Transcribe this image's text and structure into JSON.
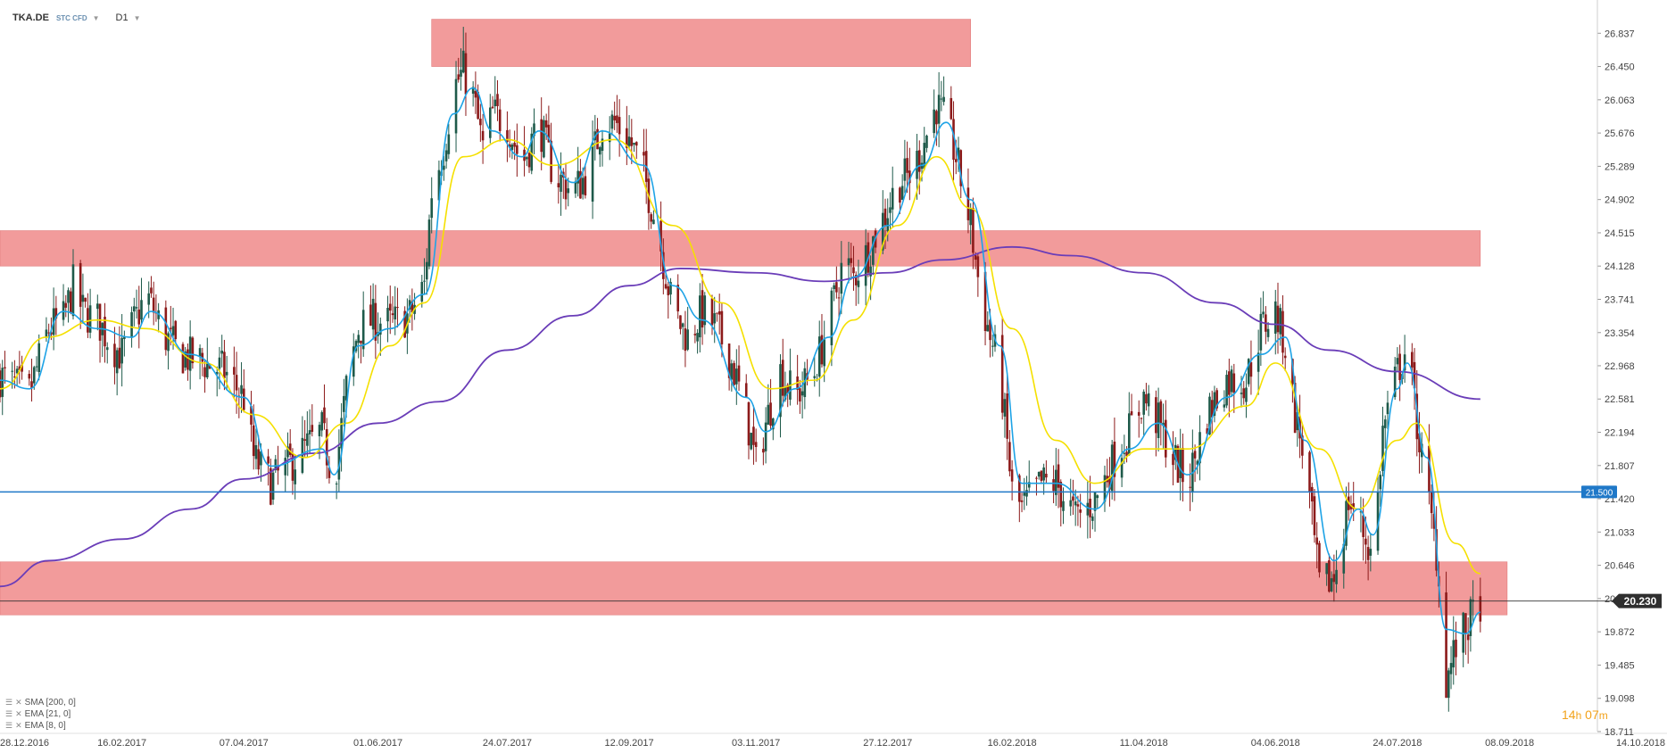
{
  "header": {
    "symbol": "TKA.DE",
    "subtitle": "STC CFD",
    "timeframe": "D1"
  },
  "legend": [
    {
      "label": "SMA [200, 0]",
      "color": "#6a3db8"
    },
    {
      "label": "EMA [21, 0]",
      "color": "#f5e000"
    },
    {
      "label": "EMA [8, 0]",
      "color": "#1ea3e6"
    }
  ],
  "timer": {
    "hours": "14",
    "h_unit": "h",
    "minutes": "07",
    "m_unit": "m"
  },
  "colors": {
    "zone": "#f29b9b",
    "bull": "#1e5a4a",
    "bear": "#8c1a1a",
    "sma200": "#6a3db8",
    "ema21": "#f5e000",
    "ema8": "#1ea3e6",
    "level": "#1f78c8",
    "price": "#333333"
  },
  "chart_data": {
    "type": "candlestick",
    "y_ticks": [
      "26.837",
      "26.450",
      "26.063",
      "25.676",
      "25.289",
      "24.902",
      "24.515",
      "24.128",
      "23.741",
      "23.354",
      "22.968",
      "22.581",
      "22.194",
      "21.807",
      "21.420",
      "21.033",
      "20.646",
      "20.259",
      "19.872",
      "19.485",
      "19.098",
      "18.711"
    ],
    "x_ticks": [
      "28.12.2016",
      "16.02.2017",
      "07.04.2017",
      "01.06.2017",
      "24.07.2017",
      "12.09.2017",
      "03.11.2017",
      "27.12.2017",
      "16.02.2018",
      "11.04.2018",
      "04.06.2018",
      "24.07.2018",
      "08.09.2018",
      "14.10.2018"
    ],
    "ylim": [
      18.711,
      27.224
    ],
    "xlim": [
      "2016-12-28",
      "2018-10-14"
    ],
    "horizontal_level": {
      "value": 21.5,
      "label": "21.500"
    },
    "current_price": {
      "value": 20.23,
      "label": "20.230"
    },
    "zones": [
      {
        "y_low": 26.45,
        "y_high": 27.0,
        "from": "2017-06-23",
        "to": "2018-01-30"
      },
      {
        "y_low": 24.128,
        "y_high": 24.54,
        "from": "2016-12-28",
        "to": "2018-08-27"
      },
      {
        "y_low": 20.069,
        "y_high": 20.686,
        "from": "2016-12-28",
        "to": "2018-09-07"
      }
    ],
    "close_path": [
      [
        "2016-12-28",
        22.85
      ],
      [
        "2017-01-02",
        22.75
      ],
      [
        "2017-01-09",
        22.65
      ],
      [
        "2017-01-17",
        23.4
      ],
      [
        "2017-01-23",
        23.5
      ],
      [
        "2017-01-27",
        23.9
      ],
      [
        "2017-01-31",
        23.6
      ],
      [
        "2017-02-06",
        23.5
      ],
      [
        "2017-02-12",
        23.2
      ],
      [
        "2017-02-16",
        23.1
      ],
      [
        "2017-02-20",
        23.4
      ],
      [
        "2017-02-26",
        23.8
      ],
      [
        "2017-03-06",
        23.3
      ],
      [
        "2017-03-12",
        23.1
      ],
      [
        "2017-03-22",
        23.0
      ],
      [
        "2017-03-30",
        22.9
      ],
      [
        "2017-04-07",
        22.6
      ],
      [
        "2017-04-11",
        21.9
      ],
      [
        "2017-04-18",
        21.6
      ],
      [
        "2017-04-25",
        21.8
      ],
      [
        "2017-05-02",
        22.0
      ],
      [
        "2017-05-09",
        22.2
      ],
      [
        "2017-05-14",
        21.6
      ],
      [
        "2017-05-19",
        22.7
      ],
      [
        "2017-05-24",
        23.4
      ],
      [
        "2017-05-30",
        23.5
      ],
      [
        "2017-06-06",
        23.45
      ],
      [
        "2017-06-14",
        23.55
      ],
      [
        "2017-06-20",
        23.9
      ],
      [
        "2017-06-23",
        25.0
      ],
      [
        "2017-06-28",
        25.5
      ],
      [
        "2017-07-02",
        26.2
      ],
      [
        "2017-07-06",
        26.4
      ],
      [
        "2017-07-10",
        26.1
      ],
      [
        "2017-07-14",
        25.5
      ],
      [
        "2017-07-18",
        25.9
      ],
      [
        "2017-07-24",
        25.8
      ],
      [
        "2017-07-30",
        25.3
      ],
      [
        "2017-08-06",
        25.8
      ],
      [
        "2017-08-12",
        25.2
      ],
      [
        "2017-08-20",
        25.0
      ],
      [
        "2017-08-26",
        25.2
      ],
      [
        "2017-09-01",
        25.8
      ],
      [
        "2017-09-06",
        25.8
      ],
      [
        "2017-09-12",
        25.6
      ],
      [
        "2017-09-18",
        25.2
      ],
      [
        "2017-09-24",
        24.5
      ],
      [
        "2017-09-30",
        23.6
      ],
      [
        "2017-10-06",
        23.3
      ],
      [
        "2017-10-12",
        23.6
      ],
      [
        "2017-10-18",
        23.4
      ],
      [
        "2017-10-24",
        23.0
      ],
      [
        "2017-10-30",
        22.4
      ],
      [
        "2017-11-03",
        21.8
      ],
      [
        "2017-11-07",
        22.3
      ],
      [
        "2017-11-13",
        22.9
      ],
      [
        "2017-11-19",
        22.6
      ],
      [
        "2017-11-27",
        22.9
      ],
      [
        "2017-12-03",
        23.5
      ],
      [
        "2017-12-09",
        24.2
      ],
      [
        "2017-12-13",
        24.0
      ],
      [
        "2017-12-19",
        24.3
      ],
      [
        "2017-12-27",
        24.8
      ],
      [
        "2017-12-31",
        25.1
      ],
      [
        "2018-01-06",
        25.2
      ],
      [
        "2018-01-10",
        25.5
      ],
      [
        "2018-01-16",
        26.0
      ],
      [
        "2018-01-20",
        25.8
      ],
      [
        "2018-01-24",
        25.4
      ],
      [
        "2018-01-30",
        24.6
      ],
      [
        "2018-02-03",
        23.8
      ],
      [
        "2018-02-07",
        23.3
      ],
      [
        "2018-02-11",
        22.9
      ],
      [
        "2018-02-16",
        21.5
      ],
      [
        "2018-02-20",
        21.3
      ],
      [
        "2018-02-28",
        21.6
      ],
      [
        "2018-03-06",
        21.6
      ],
      [
        "2018-03-14",
        21.2
      ],
      [
        "2018-03-22",
        21.4
      ],
      [
        "2018-03-30",
        21.9
      ],
      [
        "2018-04-05",
        22.2
      ],
      [
        "2018-04-11",
        22.6
      ],
      [
        "2018-04-17",
        22.3
      ],
      [
        "2018-04-23",
        21.9
      ],
      [
        "2018-04-29",
        21.6
      ],
      [
        "2018-05-07",
        22.4
      ],
      [
        "2018-05-15",
        22.8
      ],
      [
        "2018-05-23",
        22.8
      ],
      [
        "2018-05-29",
        23.4
      ],
      [
        "2018-06-04",
        23.6
      ],
      [
        "2018-06-08",
        23.2
      ],
      [
        "2018-06-12",
        22.4
      ],
      [
        "2018-06-16",
        21.9
      ],
      [
        "2018-06-22",
        20.4
      ],
      [
        "2018-06-28",
        20.5
      ],
      [
        "2018-07-04",
        21.4
      ],
      [
        "2018-07-08",
        21.2
      ],
      [
        "2018-07-14",
        20.7
      ],
      [
        "2018-07-18",
        22.2
      ],
      [
        "2018-07-24",
        22.9
      ],
      [
        "2018-07-28",
        23.2
      ],
      [
        "2018-08-01",
        22.3
      ],
      [
        "2018-08-05",
        21.5
      ],
      [
        "2018-08-09",
        20.8
      ],
      [
        "2018-08-13",
        19.3
      ],
      [
        "2018-08-17",
        19.7
      ],
      [
        "2018-08-21",
        19.9
      ],
      [
        "2018-08-27",
        20.23
      ]
    ],
    "series": [
      {
        "name": "SMA [200, 0]",
        "points": [
          [
            "2016-12-28",
            20.4
          ],
          [
            "2017-01-17",
            20.7
          ],
          [
            "2017-02-16",
            20.95
          ],
          [
            "2017-03-16",
            21.3
          ],
          [
            "2017-04-07",
            21.65
          ],
          [
            "2017-05-06",
            21.95
          ],
          [
            "2017-06-01",
            22.3
          ],
          [
            "2017-06-26",
            22.55
          ],
          [
            "2017-07-24",
            23.15
          ],
          [
            "2017-08-20",
            23.55
          ],
          [
            "2017-09-12",
            23.9
          ],
          [
            "2017-10-03",
            24.1
          ],
          [
            "2017-11-03",
            24.05
          ],
          [
            "2017-12-01",
            23.95
          ],
          [
            "2017-12-27",
            24.05
          ],
          [
            "2018-01-19",
            24.2
          ],
          [
            "2018-02-16",
            24.35
          ],
          [
            "2018-03-12",
            24.25
          ],
          [
            "2018-04-11",
            24.05
          ],
          [
            "2018-05-11",
            23.7
          ],
          [
            "2018-06-04",
            23.45
          ],
          [
            "2018-06-26",
            23.15
          ],
          [
            "2018-07-24",
            22.9
          ],
          [
            "2018-08-27",
            22.58
          ]
        ]
      },
      {
        "name": "EMA [21, 0]",
        "points": [
          [
            "2016-12-28",
            22.7
          ],
          [
            "2017-01-16",
            23.3
          ],
          [
            "2017-02-06",
            23.5
          ],
          [
            "2017-02-26",
            23.4
          ],
          [
            "2017-03-22",
            23.0
          ],
          [
            "2017-04-11",
            22.4
          ],
          [
            "2017-05-02",
            21.9
          ],
          [
            "2017-05-19",
            22.3
          ],
          [
            "2017-06-06",
            23.2
          ],
          [
            "2017-06-20",
            23.7
          ],
          [
            "2017-07-06",
            25.4
          ],
          [
            "2017-07-24",
            25.6
          ],
          [
            "2017-08-12",
            25.3
          ],
          [
            "2017-09-06",
            25.6
          ],
          [
            "2017-09-30",
            24.6
          ],
          [
            "2017-10-20",
            23.7
          ],
          [
            "2017-11-09",
            22.7
          ],
          [
            "2017-11-27",
            22.8
          ],
          [
            "2017-12-13",
            23.5
          ],
          [
            "2017-12-31",
            24.6
          ],
          [
            "2018-01-16",
            25.4
          ],
          [
            "2018-01-30",
            24.8
          ],
          [
            "2018-02-16",
            23.4
          ],
          [
            "2018-03-06",
            22.1
          ],
          [
            "2018-03-22",
            21.6
          ],
          [
            "2018-04-11",
            22.0
          ],
          [
            "2018-04-29",
            22.0
          ],
          [
            "2018-05-23",
            22.5
          ],
          [
            "2018-06-04",
            23.0
          ],
          [
            "2018-06-22",
            22.0
          ],
          [
            "2018-07-08",
            21.3
          ],
          [
            "2018-07-24",
            22.1
          ],
          [
            "2018-08-01",
            22.3
          ],
          [
            "2018-08-17",
            20.9
          ],
          [
            "2018-08-27",
            20.55
          ]
        ]
      },
      {
        "name": "EMA [8, 0]",
        "points": [
          [
            "2016-12-28",
            22.8
          ],
          [
            "2017-01-09",
            22.7
          ],
          [
            "2017-01-23",
            23.6
          ],
          [
            "2017-02-06",
            23.4
          ],
          [
            "2017-02-20",
            23.3
          ],
          [
            "2017-02-28",
            23.6
          ],
          [
            "2017-03-16",
            23.1
          ],
          [
            "2017-04-07",
            22.6
          ],
          [
            "2017-04-18",
            21.8
          ],
          [
            "2017-05-09",
            22.0
          ],
          [
            "2017-05-14",
            21.7
          ],
          [
            "2017-05-24",
            23.2
          ],
          [
            "2017-06-06",
            23.4
          ],
          [
            "2017-06-20",
            23.8
          ],
          [
            "2017-07-02",
            25.9
          ],
          [
            "2017-07-10",
            26.2
          ],
          [
            "2017-07-18",
            25.7
          ],
          [
            "2017-07-30",
            25.4
          ],
          [
            "2017-08-06",
            25.7
          ],
          [
            "2017-08-20",
            25.1
          ],
          [
            "2017-09-01",
            25.7
          ],
          [
            "2017-09-18",
            25.3
          ],
          [
            "2017-09-30",
            23.9
          ],
          [
            "2017-10-12",
            23.5
          ],
          [
            "2017-10-30",
            22.6
          ],
          [
            "2017-11-07",
            22.2
          ],
          [
            "2017-11-19",
            22.7
          ],
          [
            "2017-12-03",
            23.3
          ],
          [
            "2017-12-13",
            24.0
          ],
          [
            "2017-12-27",
            24.6
          ],
          [
            "2018-01-10",
            25.3
          ],
          [
            "2018-01-20",
            25.8
          ],
          [
            "2018-01-30",
            24.9
          ],
          [
            "2018-02-11",
            23.2
          ],
          [
            "2018-02-20",
            21.6
          ],
          [
            "2018-03-06",
            21.6
          ],
          [
            "2018-03-22",
            21.3
          ],
          [
            "2018-04-05",
            22.0
          ],
          [
            "2018-04-17",
            22.3
          ],
          [
            "2018-04-29",
            21.7
          ],
          [
            "2018-05-15",
            22.6
          ],
          [
            "2018-05-29",
            23.1
          ],
          [
            "2018-06-08",
            23.3
          ],
          [
            "2018-06-16",
            22.1
          ],
          [
            "2018-06-28",
            20.7
          ],
          [
            "2018-07-08",
            21.3
          ],
          [
            "2018-07-14",
            21.0
          ],
          [
            "2018-07-24",
            22.7
          ],
          [
            "2018-07-28",
            23.0
          ],
          [
            "2018-08-05",
            21.9
          ],
          [
            "2018-08-13",
            19.9
          ],
          [
            "2018-08-21",
            19.85
          ],
          [
            "2018-08-27",
            20.1
          ]
        ]
      }
    ]
  }
}
